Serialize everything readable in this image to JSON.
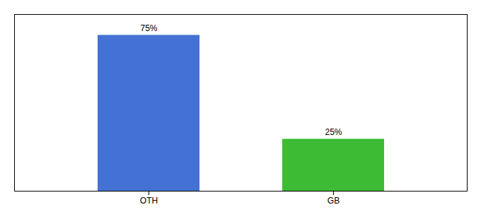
{
  "chart_data": {
    "type": "bar",
    "categories": [
      "OTH",
      "GB"
    ],
    "values": [
      75,
      25
    ],
    "value_labels": [
      "75%",
      "25%"
    ],
    "colors": [
      "#4472d4",
      "#3dbb35"
    ],
    "ylim": [
      0,
      85
    ],
    "grid": false,
    "data_labels": true,
    "tick_labels": "x"
  }
}
